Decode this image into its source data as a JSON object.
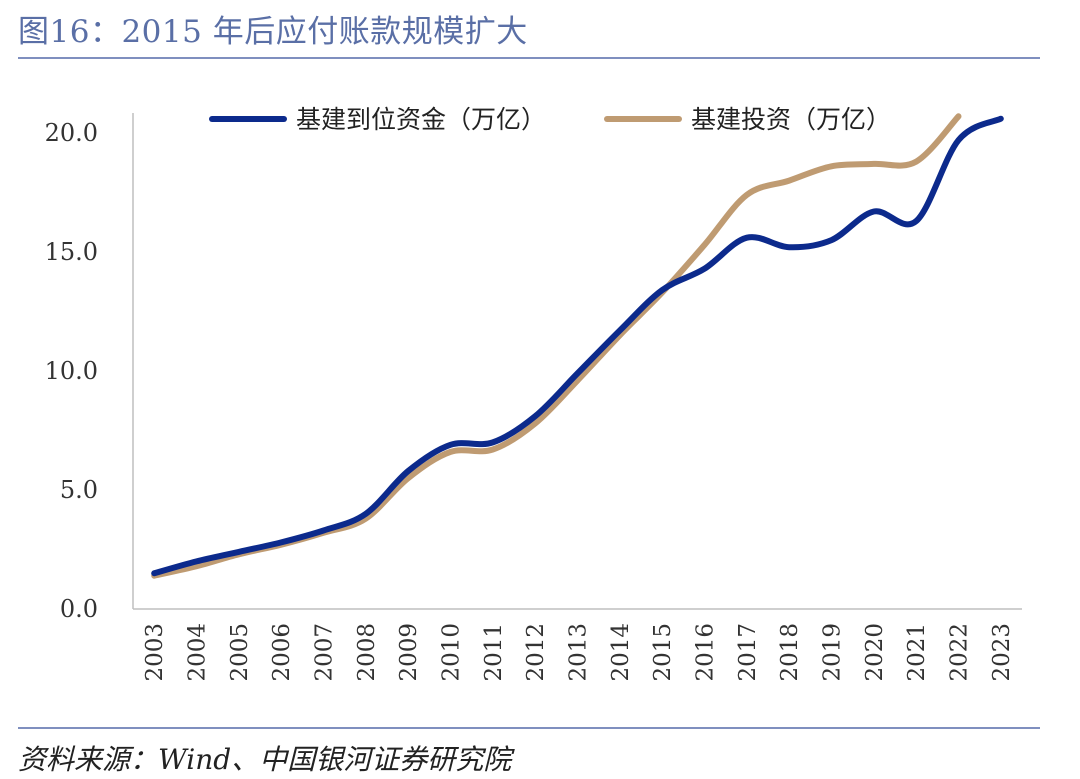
{
  "header": {
    "title": "图16：2015 年后应付账款规模扩大"
  },
  "footer": {
    "source": "资料来源：Wind、中国银河证券研究院"
  },
  "colors": {
    "title": "#5a6fa6",
    "rule": "#7f8fbf",
    "axis": "#bfbfbf"
  },
  "chart_data": {
    "type": "line",
    "title": "",
    "xlabel": "",
    "ylabel": "",
    "ylim": [
      0,
      20
    ],
    "yticks": [
      "0.0",
      "5.0",
      "10.0",
      "15.0",
      "20.0"
    ],
    "grid": false,
    "legend_position": "top",
    "categories": [
      "2003",
      "2004",
      "2005",
      "2006",
      "2007",
      "2008",
      "2009",
      "2010",
      "2011",
      "2012",
      "2013",
      "2014",
      "2015",
      "2016",
      "2017",
      "2018",
      "2019",
      "2020",
      "2021",
      "2022",
      "2023"
    ],
    "series": [
      {
        "name": "基建到位资金（万亿）",
        "color": "#0c2a8c",
        "values": [
          1.5,
          2.0,
          2.4,
          2.8,
          3.3,
          4.0,
          5.8,
          6.9,
          7.0,
          8.1,
          9.9,
          11.7,
          13.4,
          14.3,
          15.6,
          15.2,
          15.5,
          16.7,
          16.3,
          19.7,
          20.6
        ]
      },
      {
        "name": "基建投资（万亿）",
        "color": "#bf9b72",
        "values": [
          1.4,
          1.8,
          2.3,
          2.7,
          3.2,
          3.8,
          5.5,
          6.6,
          6.7,
          7.8,
          9.6,
          11.5,
          13.3,
          15.3,
          17.4,
          18.0,
          18.6,
          18.7,
          18.8,
          20.7,
          null
        ]
      }
    ]
  }
}
